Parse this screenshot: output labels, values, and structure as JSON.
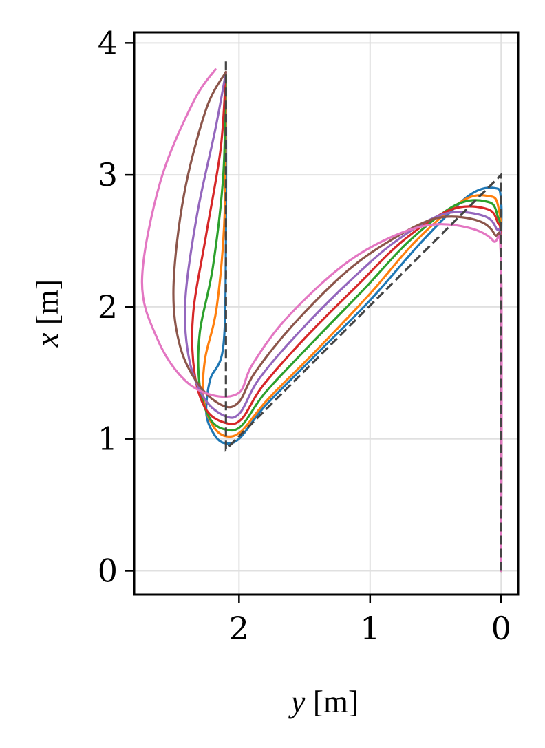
{
  "chart_data": {
    "type": "line",
    "xlabel_var": "y",
    "xlabel_unit": "[m]",
    "ylabel_var": "x",
    "ylabel_unit": "[m]",
    "xlim": [
      2.8,
      -0.13
    ],
    "ylim": [
      -0.18,
      4.08
    ],
    "x_inverted": true,
    "xticks": [
      2,
      1,
      0
    ],
    "yticks": [
      0,
      1,
      2,
      3,
      4
    ],
    "grid": true,
    "reference": {
      "style": "dashed",
      "color": "#444444",
      "x": [
        0,
        0,
        2.1,
        2.1
      ],
      "y": [
        0,
        3.0,
        0.92,
        3.87
      ]
    },
    "series": [
      {
        "color": "#1f77b4",
        "x": [
          0,
          0,
          0.0,
          0.05,
          0.25,
          0.6,
          1.0,
          1.4,
          1.8,
          2.0,
          2.12,
          2.2,
          2.25,
          2.22,
          2.12,
          2.1,
          2.1
        ],
        "y": [
          0,
          2.3,
          2.8,
          2.9,
          2.84,
          2.5,
          2.05,
          1.65,
          1.25,
          1.0,
          0.97,
          1.05,
          1.2,
          1.45,
          1.7,
          2.5,
          3.78
        ]
      },
      {
        "color": "#ff7f0e",
        "x": [
          0,
          0,
          0.02,
          0.1,
          0.3,
          0.65,
          1.0,
          1.4,
          1.78,
          1.98,
          2.1,
          2.2,
          2.27,
          2.26,
          2.17,
          2.11,
          2.1
        ],
        "y": [
          0,
          2.3,
          2.75,
          2.84,
          2.8,
          2.5,
          2.1,
          1.68,
          1.3,
          1.06,
          1.02,
          1.1,
          1.3,
          1.6,
          2.0,
          2.7,
          3.78
        ]
      },
      {
        "color": "#2ca02c",
        "x": [
          0,
          0,
          0.03,
          0.12,
          0.35,
          0.7,
          1.05,
          1.45,
          1.8,
          1.98,
          2.1,
          2.22,
          2.3,
          2.3,
          2.2,
          2.12,
          2.1
        ],
        "y": [
          0,
          2.3,
          2.7,
          2.8,
          2.77,
          2.5,
          2.13,
          1.72,
          1.35,
          1.1,
          1.07,
          1.15,
          1.4,
          1.8,
          2.3,
          3.0,
          3.78
        ]
      },
      {
        "color": "#d62728",
        "x": [
          0,
          0,
          0.03,
          0.14,
          0.4,
          0.75,
          1.1,
          1.5,
          1.82,
          1.98,
          2.1,
          2.25,
          2.34,
          2.35,
          2.25,
          2.14,
          2.1
        ],
        "y": [
          0,
          2.3,
          2.65,
          2.75,
          2.73,
          2.5,
          2.16,
          1.76,
          1.4,
          1.15,
          1.12,
          1.22,
          1.5,
          1.95,
          2.55,
          3.2,
          3.78
        ]
      },
      {
        "color": "#9467bd",
        "x": [
          0,
          0,
          0.04,
          0.17,
          0.45,
          0.8,
          1.15,
          1.55,
          1.85,
          1.99,
          2.1,
          2.26,
          2.38,
          2.41,
          2.32,
          2.18,
          2.1
        ],
        "y": [
          0,
          2.3,
          2.6,
          2.7,
          2.7,
          2.5,
          2.2,
          1.8,
          1.45,
          1.2,
          1.17,
          1.3,
          1.6,
          2.05,
          2.7,
          3.35,
          3.78
        ]
      },
      {
        "color": "#8c564b",
        "x": [
          0,
          0,
          0.05,
          0.2,
          0.5,
          0.85,
          1.2,
          1.6,
          1.88,
          2.0,
          2.12,
          2.3,
          2.45,
          2.5,
          2.42,
          2.25,
          2.1
        ],
        "y": [
          0,
          2.3,
          2.55,
          2.66,
          2.67,
          2.5,
          2.25,
          1.85,
          1.5,
          1.28,
          1.25,
          1.4,
          1.7,
          2.15,
          2.85,
          3.5,
          3.78
        ]
      },
      {
        "color": "#e377c2",
        "x": [
          0,
          0,
          0.06,
          0.25,
          0.55,
          0.9,
          1.25,
          1.65,
          1.9,
          2.0,
          2.2,
          2.42,
          2.62,
          2.74,
          2.6,
          2.35,
          2.18
        ],
        "y": [
          0,
          2.3,
          2.5,
          2.6,
          2.62,
          2.5,
          2.28,
          1.9,
          1.56,
          1.35,
          1.33,
          1.45,
          1.75,
          2.2,
          2.95,
          3.55,
          3.8
        ]
      }
    ]
  }
}
